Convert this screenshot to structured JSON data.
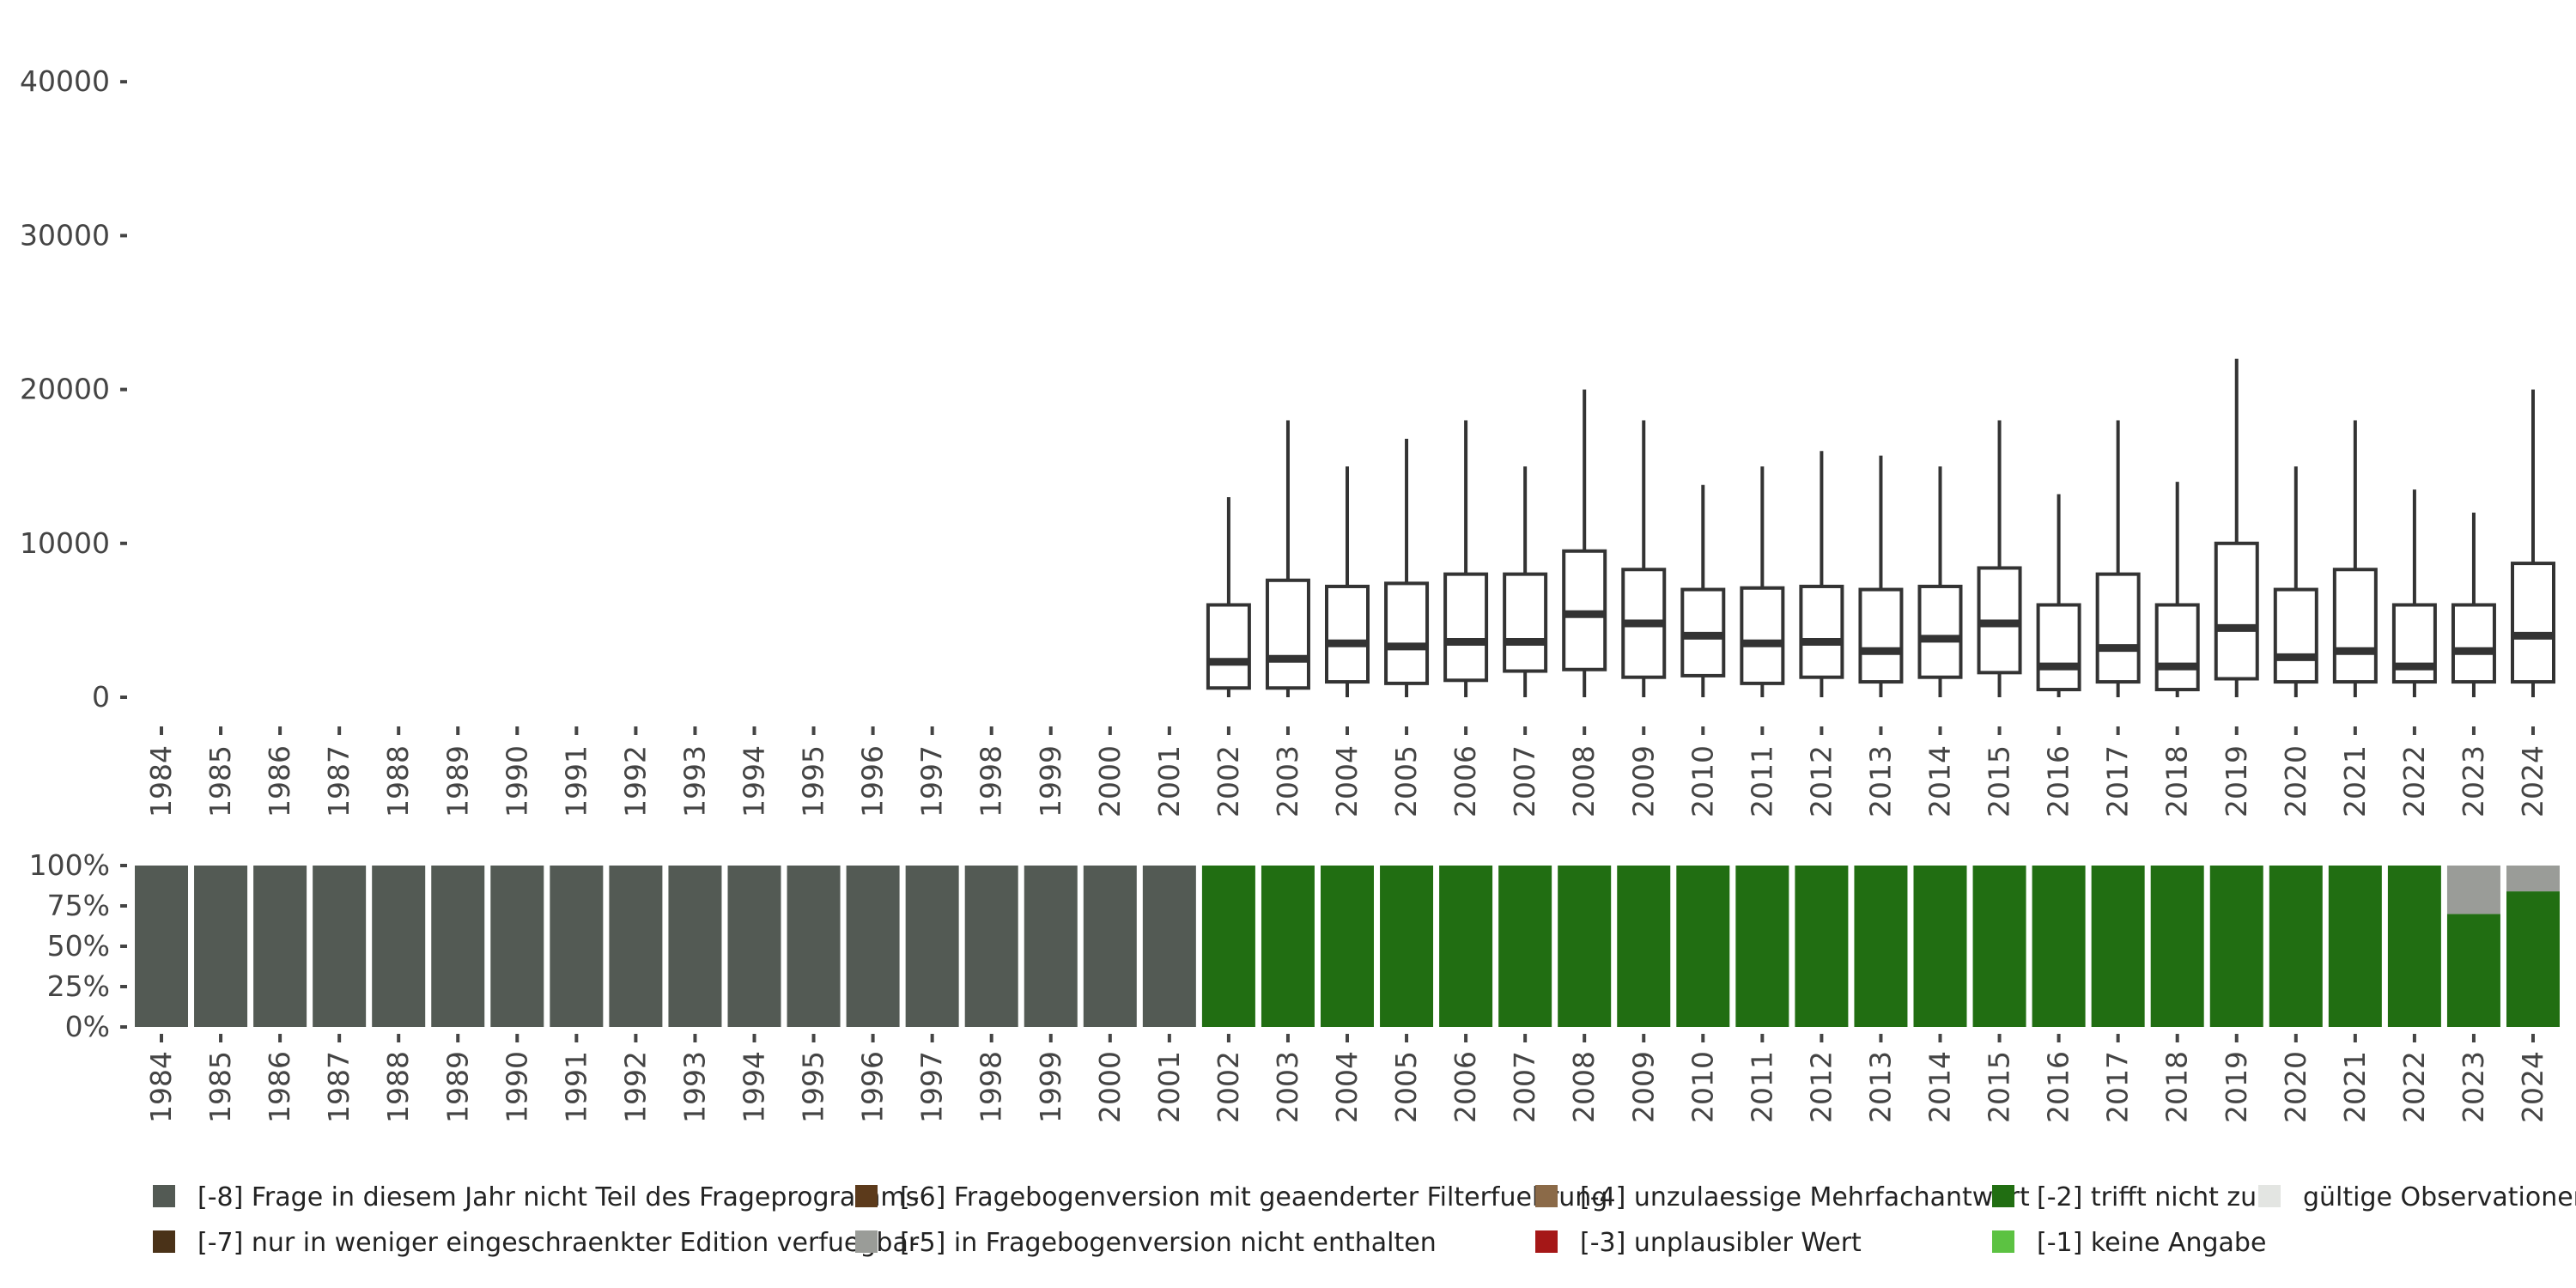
{
  "chart_data": [
    {
      "type": "boxplot",
      "title": "",
      "xlabel": "",
      "ylabel": "",
      "ylim": [
        0,
        45000
      ],
      "y_ticks": [
        0,
        10000,
        20000,
        30000,
        40000
      ],
      "y_tick_labels": [
        "0",
        "10000",
        "20000",
        "30000",
        "40000"
      ],
      "categories": [
        "1984",
        "1985",
        "1986",
        "1987",
        "1988",
        "1989",
        "1990",
        "1991",
        "1992",
        "1993",
        "1994",
        "1995",
        "1996",
        "1997",
        "1998",
        "1999",
        "2000",
        "2001",
        "2002",
        "2003",
        "2004",
        "2005",
        "2006",
        "2007",
        "2008",
        "2009",
        "2010",
        "2011",
        "2012",
        "2013",
        "2014",
        "2015",
        "2016",
        "2017",
        "2018",
        "2019",
        "2020",
        "2021",
        "2022",
        "2023",
        "2024"
      ],
      "boxes": [
        {
          "year": "2002",
          "whisker_low": 0,
          "q1": 600,
          "median": 2300,
          "q3": 6000,
          "whisker_high": 13000
        },
        {
          "year": "2003",
          "whisker_low": 0,
          "q1": 600,
          "median": 2500,
          "q3": 7600,
          "whisker_high": 18000
        },
        {
          "year": "2004",
          "whisker_low": 0,
          "q1": 1000,
          "median": 3500,
          "q3": 7200,
          "whisker_high": 15000
        },
        {
          "year": "2005",
          "whisker_low": 0,
          "q1": 900,
          "median": 3300,
          "q3": 7400,
          "whisker_high": 16800
        },
        {
          "year": "2006",
          "whisker_low": 0,
          "q1": 1100,
          "median": 3600,
          "q3": 8000,
          "whisker_high": 18000
        },
        {
          "year": "2007",
          "whisker_low": 0,
          "q1": 1700,
          "median": 3600,
          "q3": 8000,
          "whisker_high": 15000
        },
        {
          "year": "2008",
          "whisker_low": 0,
          "q1": 1800,
          "median": 5400,
          "q3": 9500,
          "whisker_high": 20000
        },
        {
          "year": "2009",
          "whisker_low": 0,
          "q1": 1300,
          "median": 4800,
          "q3": 8300,
          "whisker_high": 18000
        },
        {
          "year": "2010",
          "whisker_low": 0,
          "q1": 1400,
          "median": 4000,
          "q3": 7000,
          "whisker_high": 13800
        },
        {
          "year": "2011",
          "whisker_low": 0,
          "q1": 900,
          "median": 3500,
          "q3": 7100,
          "whisker_high": 15000
        },
        {
          "year": "2012",
          "whisker_low": 0,
          "q1": 1300,
          "median": 3600,
          "q3": 7200,
          "whisker_high": 16000
        },
        {
          "year": "2013",
          "whisker_low": 0,
          "q1": 1000,
          "median": 3000,
          "q3": 7000,
          "whisker_high": 15700
        },
        {
          "year": "2014",
          "whisker_low": 0,
          "q1": 1300,
          "median": 3800,
          "q3": 7200,
          "whisker_high": 15000
        },
        {
          "year": "2015",
          "whisker_low": 0,
          "q1": 1600,
          "median": 4800,
          "q3": 8400,
          "whisker_high": 18000
        },
        {
          "year": "2016",
          "whisker_low": 0,
          "q1": 500,
          "median": 2000,
          "q3": 6000,
          "whisker_high": 13200
        },
        {
          "year": "2017",
          "whisker_low": 0,
          "q1": 1000,
          "median": 3200,
          "q3": 8000,
          "whisker_high": 18000
        },
        {
          "year": "2018",
          "whisker_low": 0,
          "q1": 500,
          "median": 2000,
          "q3": 6000,
          "whisker_high": 14000
        },
        {
          "year": "2019",
          "whisker_low": 0,
          "q1": 1200,
          "median": 4500,
          "q3": 10000,
          "whisker_high": 22000
        },
        {
          "year": "2020",
          "whisker_low": 0,
          "q1": 1000,
          "median": 2600,
          "q3": 7000,
          "whisker_high": 15000
        },
        {
          "year": "2021",
          "whisker_low": 0,
          "q1": 1000,
          "median": 3000,
          "q3": 8300,
          "whisker_high": 18000
        },
        {
          "year": "2022",
          "whisker_low": 0,
          "q1": 1000,
          "median": 2000,
          "q3": 6000,
          "whisker_high": 13500
        },
        {
          "year": "2023",
          "whisker_low": 0,
          "q1": 1000,
          "median": 3000,
          "q3": 6000,
          "whisker_high": 12000
        },
        {
          "year": "2024",
          "whisker_low": 0,
          "q1": 1000,
          "median": 4000,
          "q3": 8700,
          "whisker_high": 20000
        }
      ]
    },
    {
      "type": "stacked-bar",
      "title": "",
      "xlabel": "",
      "ylabel": "",
      "ylim": [
        0,
        100
      ],
      "y_ticks": [
        0,
        25,
        50,
        75,
        100
      ],
      "y_tick_labels": [
        "0%",
        "25%",
        "50%",
        "75%",
        "100%"
      ],
      "categories": [
        "1984",
        "1985",
        "1986",
        "1987",
        "1988",
        "1989",
        "1990",
        "1991",
        "1992",
        "1993",
        "1994",
        "1995",
        "1996",
        "1997",
        "1998",
        "1999",
        "2000",
        "2001",
        "2002",
        "2003",
        "2004",
        "2005",
        "2006",
        "2007",
        "2008",
        "2009",
        "2010",
        "2011",
        "2012",
        "2013",
        "2014",
        "2015",
        "2016",
        "2017",
        "2018",
        "2019",
        "2020",
        "2021",
        "2022",
        "2023",
        "2024"
      ],
      "series": [
        {
          "name": "[-8] Frage in diesem Jahr nicht Teil des Frageprogramms",
          "color": "#535a54",
          "values": [
            100,
            100,
            100,
            100,
            100,
            100,
            100,
            100,
            100,
            100,
            100,
            100,
            100,
            100,
            100,
            100,
            100,
            100,
            0,
            0,
            0,
            0,
            0,
            0,
            0,
            0,
            0,
            0,
            0,
            0,
            0,
            0,
            0,
            0,
            0,
            0,
            0,
            0,
            0,
            0,
            0
          ]
        },
        {
          "name": "[-2] trifft nicht zu",
          "color": "#216e12",
          "values": [
            0,
            0,
            0,
            0,
            0,
            0,
            0,
            0,
            0,
            0,
            0,
            0,
            0,
            0,
            0,
            0,
            0,
            0,
            100,
            100,
            100,
            100,
            100,
            100,
            100,
            100,
            100,
            100,
            100,
            100,
            100,
            100,
            100,
            100,
            100,
            100,
            100,
            100,
            100,
            70,
            84
          ]
        },
        {
          "name": "[-5] in Fragebogenversion nicht enthalten",
          "color": "#9a9c98",
          "values": [
            0,
            0,
            0,
            0,
            0,
            0,
            0,
            0,
            0,
            0,
            0,
            0,
            0,
            0,
            0,
            0,
            0,
            0,
            0,
            0,
            0,
            0,
            0,
            0,
            0,
            0,
            0,
            0,
            0,
            0,
            0,
            0,
            0,
            0,
            0,
            0,
            0,
            0,
            0,
            30,
            16
          ]
        }
      ]
    }
  ],
  "legend": {
    "position": "bottom",
    "items": [
      {
        "label": "[-8] Frage in diesem Jahr nicht Teil des Frageprogramms",
        "color": "#535a54"
      },
      {
        "label": "[-7] nur in weniger eingeschraenkter Edition verfuegbar",
        "color": "#4a3218"
      },
      {
        "label": "[-6] Fragebogenversion mit geaenderter Filterfuehrung",
        "color": "#5c3a1b"
      },
      {
        "label": "[-5] in Fragebogenversion nicht enthalten",
        "color": "#9a9c98"
      },
      {
        "label": "[-4] unzulaessige Mehrfachantwort",
        "color": "#8b6a48"
      },
      {
        "label": "[-3] unplausibler Wert",
        "color": "#a51717"
      },
      {
        "label": "[-2] trifft nicht zu",
        "color": "#216e12"
      },
      {
        "label": "[-1] keine Angabe",
        "color": "#5cc242"
      },
      {
        "label": "gültige Observationen",
        "color": "#e3e5e2"
      }
    ]
  }
}
